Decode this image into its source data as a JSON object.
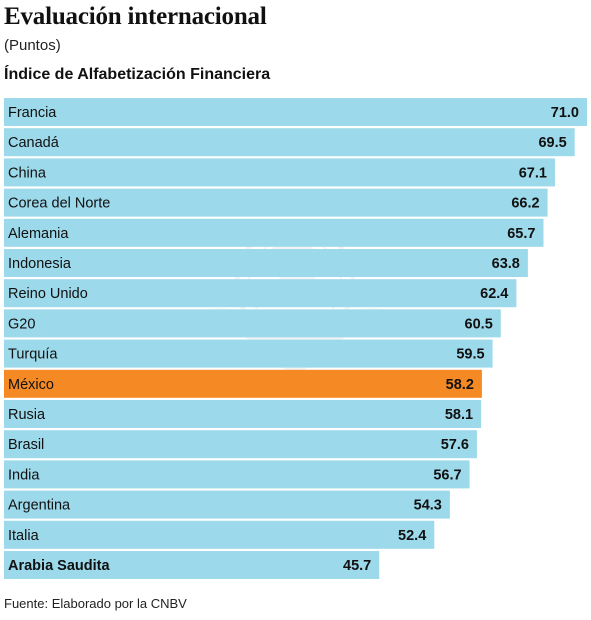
{
  "title": "Evaluación internacional",
  "subtitle": "(Puntos)",
  "chart_title": "Índice de Alfabetización Financiera",
  "source": "Fuente: Elaborado por la CNBV",
  "colors": {
    "bar": "#9cd9ea",
    "highlight": "#f58a24"
  },
  "chart_data": {
    "type": "bar",
    "orientation": "horizontal",
    "title": "Índice de Alfabetización Financiera",
    "categories": [
      "Francia",
      "Canadá",
      "China",
      "Corea del Norte",
      "Alemania",
      "Indonesia",
      "Reino Unido",
      "G20",
      "Turquía",
      "México",
      "Rusia",
      "Brasil",
      "India",
      "Argentina",
      "Italia",
      "Arabia Saudita"
    ],
    "values": [
      71.0,
      69.5,
      67.1,
      66.2,
      65.7,
      63.8,
      62.4,
      60.5,
      59.5,
      58.2,
      58.1,
      57.6,
      56.7,
      54.3,
      52.4,
      45.7
    ],
    "labels": [
      "71.0",
      "69.5",
      "67.1",
      "66.2",
      "65.7",
      "63.8",
      "62.4",
      "60.5",
      "59.5",
      "58.2",
      "58.1",
      "57.6",
      "56.7",
      "54.3",
      "52.4",
      "45.7"
    ],
    "highlight": "México",
    "xlim": [
      0,
      71.0
    ],
    "grid": false,
    "legend": "none"
  }
}
